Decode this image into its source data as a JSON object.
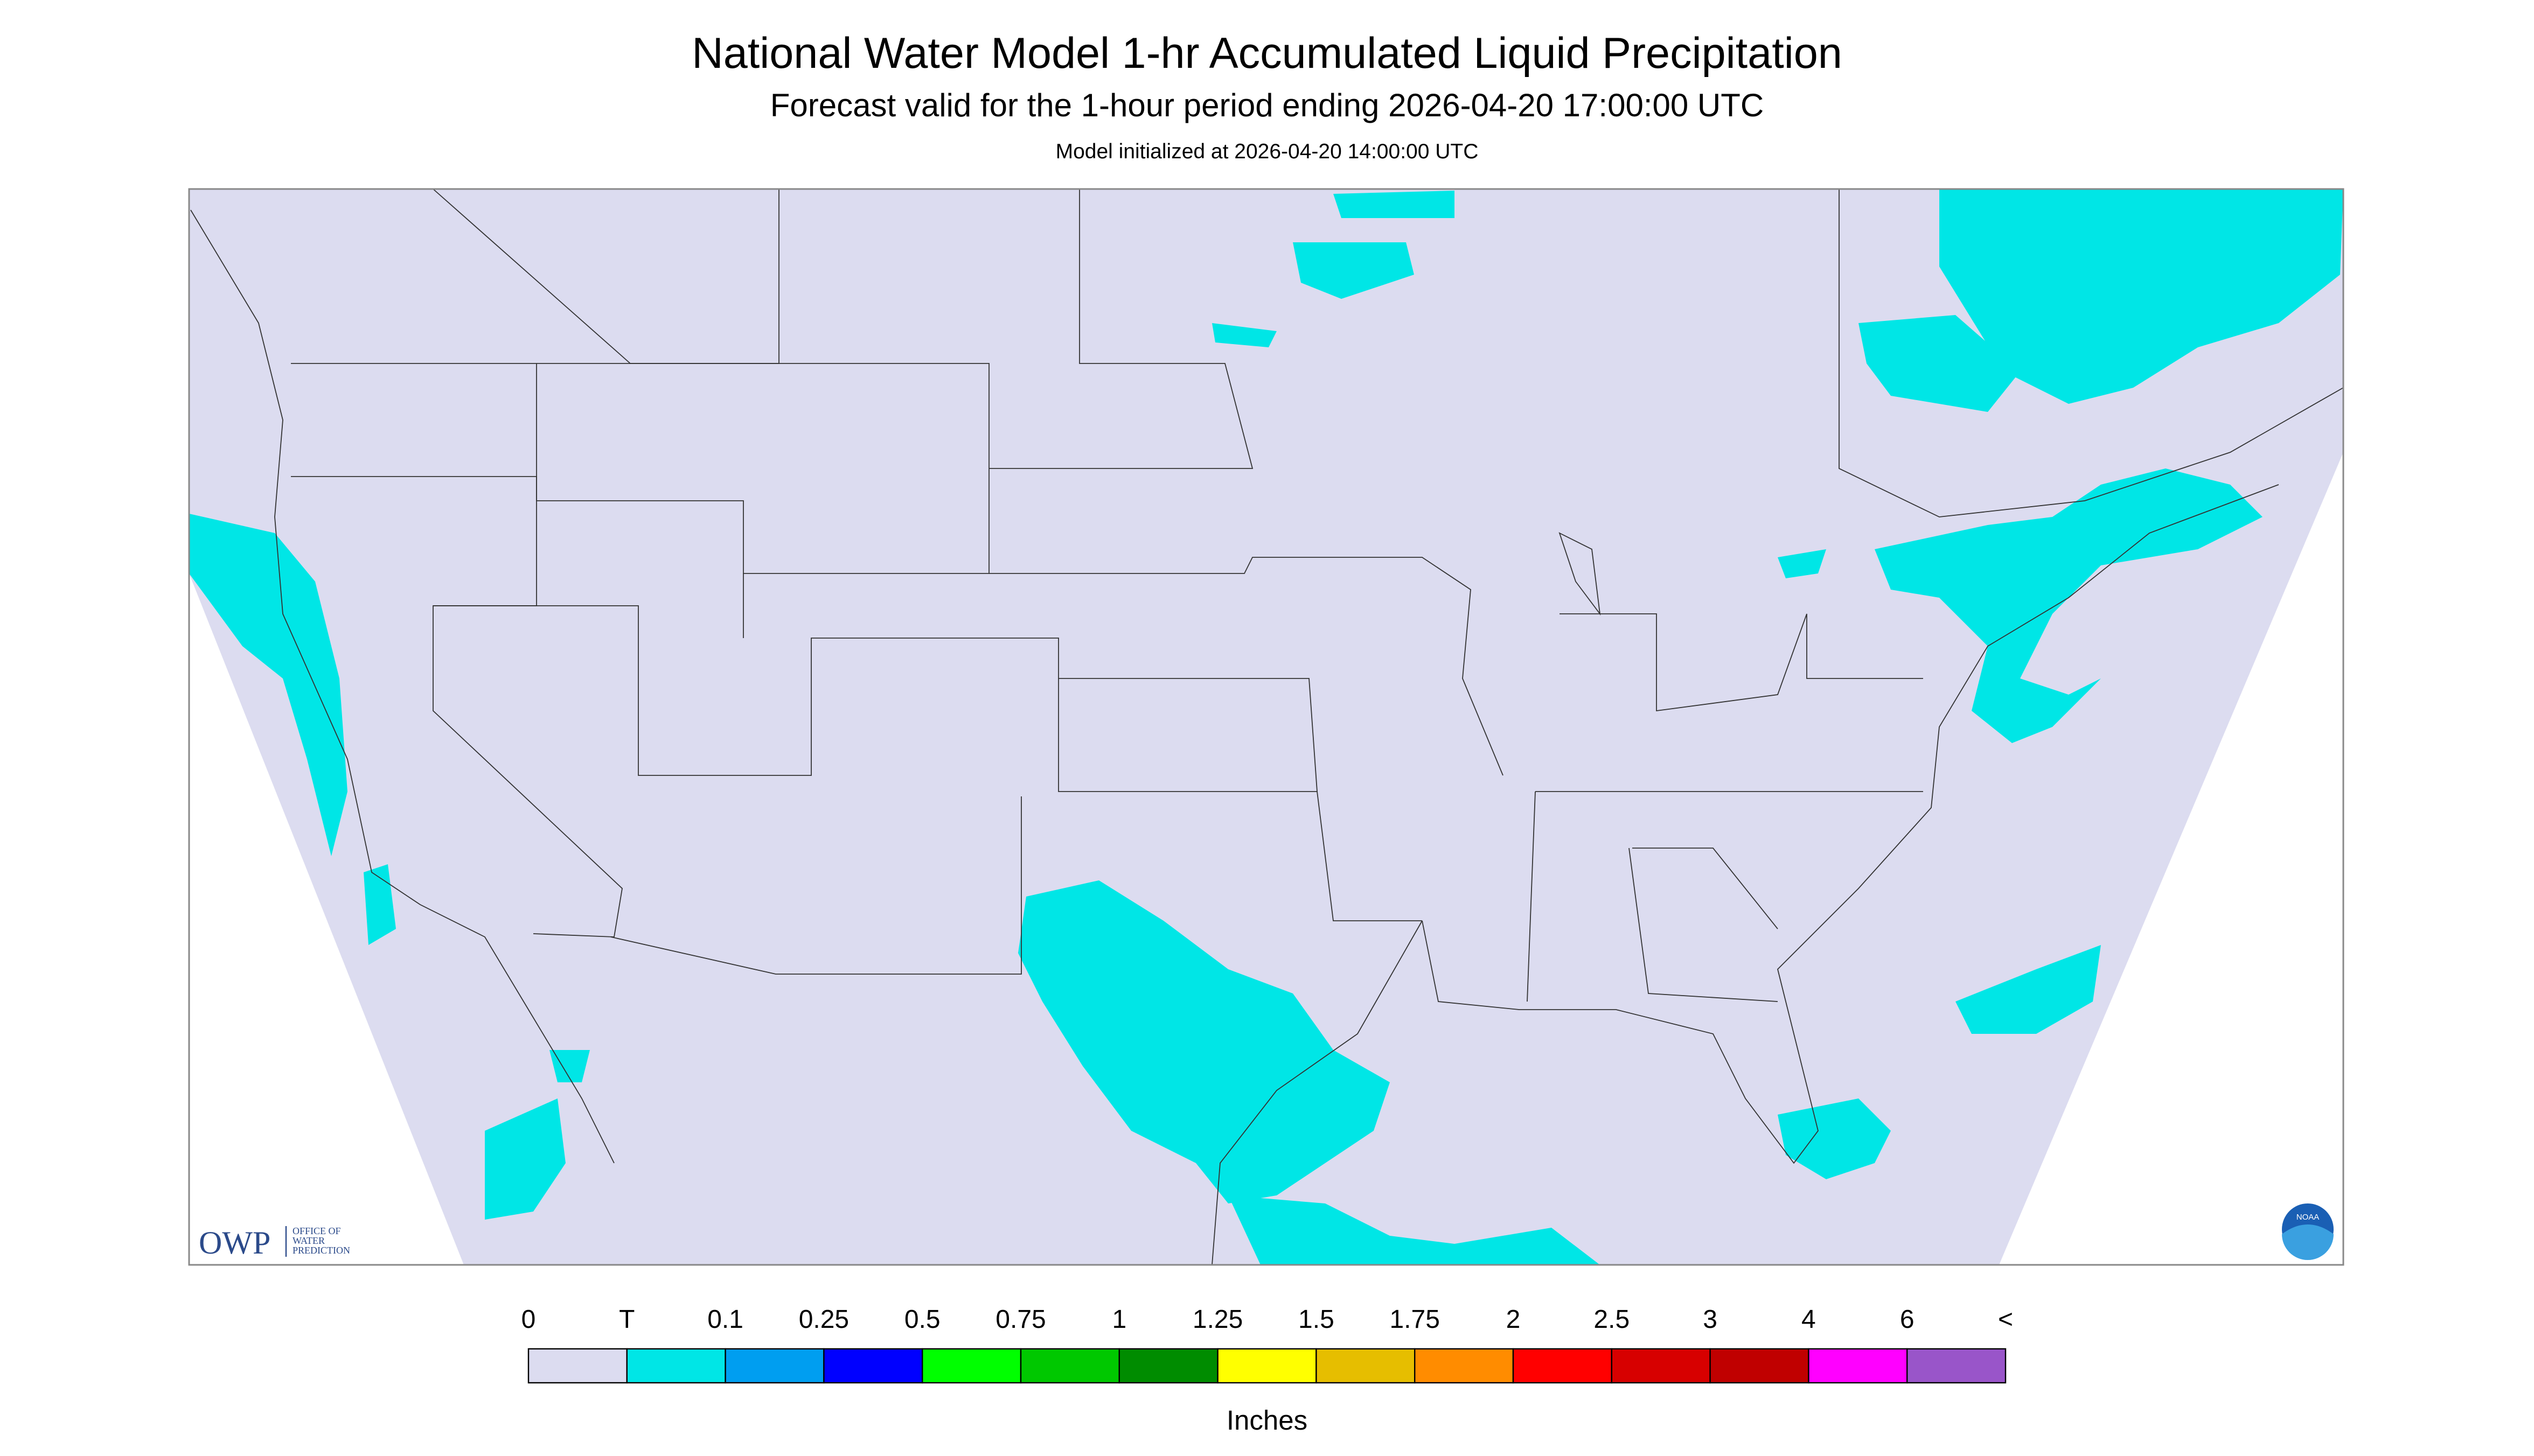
{
  "header": {
    "title": "National Water Model 1-hr Accumulated Liquid Precipitation",
    "subtitle": "Forecast valid for the 1-hour period ending 2026-04-20 17:00:00 UTC",
    "init": "Model initialized at 2026-04-20 14:00:00 UTC"
  },
  "logo": {
    "owp": "OWP",
    "org": [
      "OFFICE OF",
      "WATER",
      "PREDICTION"
    ],
    "noaa": "NOAA"
  },
  "legend": {
    "labels": [
      "0",
      "T",
      "0.1",
      "0.25",
      "0.5",
      "0.75",
      "1",
      "1.25",
      "1.5",
      "1.75",
      "2",
      "2.5",
      "3",
      "4",
      "6",
      "<"
    ],
    "colors": [
      "#dcdcf0",
      "#00e6e6",
      "#009ef0",
      "#0000ff",
      "#00ff00",
      "#00c800",
      "#008c00",
      "#ffff00",
      "#e6be00",
      "#ff8c00",
      "#ff0000",
      "#d70000",
      "#c00000",
      "#ff00ff",
      "#9955c9"
    ],
    "unit": "Inches"
  }
}
